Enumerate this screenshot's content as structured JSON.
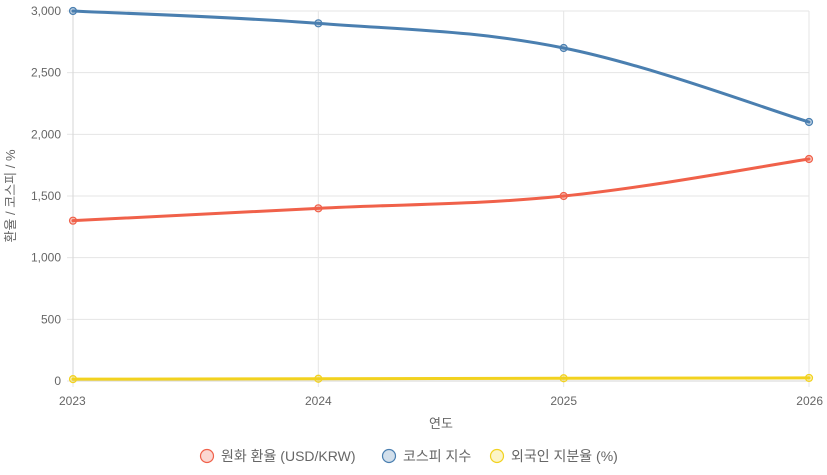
{
  "chart_data": {
    "type": "line",
    "title": "",
    "xlabel": "연도",
    "ylabel": "환율 / 코스피 / %",
    "x": [
      "2023",
      "2024",
      "2025",
      "2026"
    ],
    "ylim": [
      0,
      3000
    ],
    "yticks": [
      0,
      500,
      1000,
      1500,
      2000,
      2500,
      3000
    ],
    "ytick_labels": [
      "0",
      "500",
      "1,000",
      "1,500",
      "2,000",
      "2,500",
      "3,000"
    ],
    "grid": true,
    "legend_position": "bottom",
    "series": [
      {
        "name": "원화 환율 (USD/KRW)",
        "color": "#f0614a",
        "values": [
          1300,
          1400,
          1500,
          1800
        ]
      },
      {
        "name": "코스피 지수",
        "color": "#4a7fb0",
        "values": [
          3000,
          2900,
          2700,
          2100
        ]
      },
      {
        "name": "외국인 지분율 (%)",
        "color": "#f2d21f",
        "values": [
          15,
          18,
          22,
          25
        ]
      }
    ]
  }
}
